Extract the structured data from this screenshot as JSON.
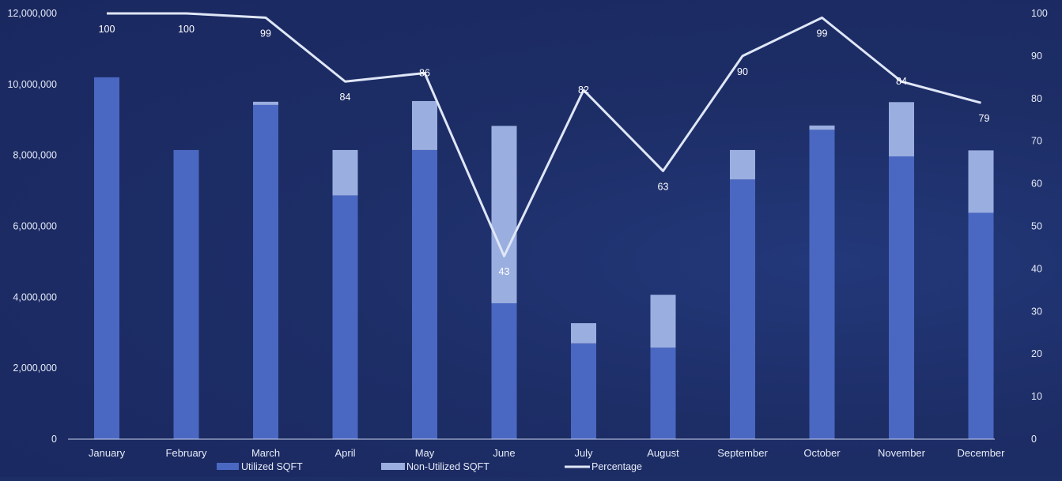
{
  "chart_data": {
    "type": "bar",
    "stacked": true,
    "categories": [
      "January",
      "February",
      "March",
      "April",
      "May",
      "June",
      "July",
      "August",
      "September",
      "October",
      "November",
      "December"
    ],
    "series": [
      {
        "name": "Utilized SQFT",
        "values": [
          10200000,
          8150000,
          9420000,
          6870000,
          8150000,
          3830000,
          2700000,
          2580000,
          7320000,
          8720000,
          7970000,
          6380000
        ],
        "color": "#4a68c2"
      },
      {
        "name": "Non-Utilized SQFT",
        "values": [
          0,
          0,
          90000,
          1280000,
          1380000,
          5000000,
          570000,
          1490000,
          830000,
          120000,
          1530000,
          1760000
        ],
        "color": "#9aaee0"
      }
    ],
    "line_series": {
      "name": "Percentage",
      "values": [
        100,
        100,
        99,
        84,
        86,
        43,
        82,
        63,
        90,
        99,
        84,
        79
      ],
      "color": "#dfe6f6"
    },
    "ylim": [
      0,
      12000000
    ],
    "y2lim": [
      0,
      100
    ],
    "yticks": [
      "0",
      "2,000,000",
      "4,000,000",
      "6,000,000",
      "8,000,000",
      "10,000,000",
      "12,000,000"
    ],
    "y2ticks": [
      "0",
      "10",
      "20",
      "30",
      "40",
      "50",
      "60",
      "70",
      "80",
      "90",
      "100"
    ],
    "data_labels": [
      "100",
      "100",
      "99",
      "84",
      "86",
      "43",
      "82",
      "63",
      "90",
      "99",
      "84",
      "79"
    ],
    "legend": {
      "position": "bottom",
      "items": [
        "Utilized SQFT",
        "Non-Utilized SQFT",
        "Percentage"
      ]
    },
    "grid": false
  }
}
